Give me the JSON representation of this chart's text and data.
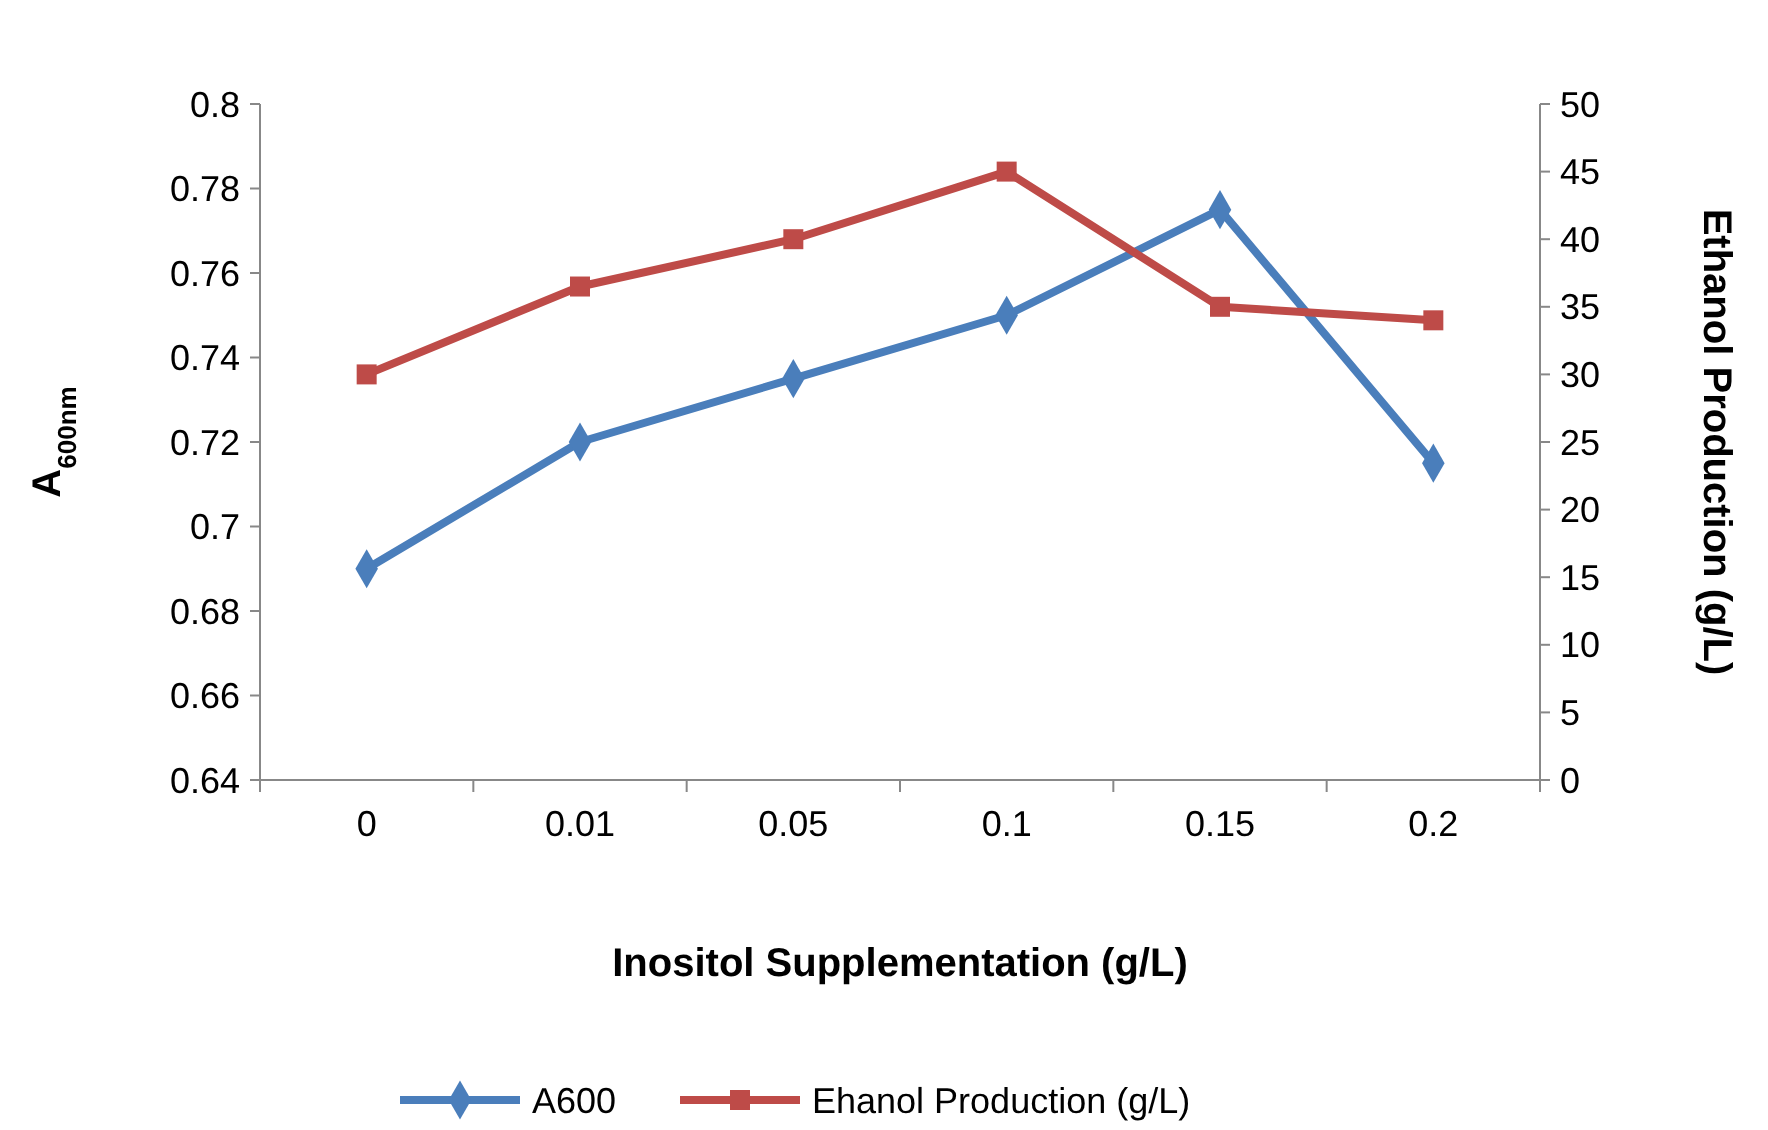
{
  "chart_data": {
    "type": "line",
    "xlabel": "Inositol Supplementation (g/L)",
    "ylabel": "A$_{600nm}$",
    "y2label": "Ethanol Production (g/L)",
    "categories": [
      "0",
      "0.01",
      "0.05",
      "0.1",
      "0.15",
      "0.2"
    ],
    "series": [
      {
        "name": "A600",
        "color": "#4a7ebb",
        "marker": "diamond",
        "values": [
          0.69,
          0.72,
          0.735,
          0.75,
          0.775,
          0.715
        ]
      },
      {
        "name": "Ehanol Production (g/L)",
        "color": "#be4b48",
        "marker": "square",
        "axis": "y2",
        "values": [
          30,
          36.5,
          40,
          45,
          35,
          34
        ]
      }
    ],
    "ylim": [
      0.64,
      0.8
    ],
    "yticks": [
      0.64,
      0.66,
      0.68,
      0.7,
      0.72,
      0.74,
      0.76,
      0.78,
      0.8
    ],
    "y2lim": [
      0,
      50
    ],
    "y2ticks": [
      0,
      5,
      10,
      15,
      20,
      25,
      30,
      35,
      40,
      45,
      50
    ],
    "grid": false,
    "legend": "bottom",
    "line_style": "solid"
  }
}
